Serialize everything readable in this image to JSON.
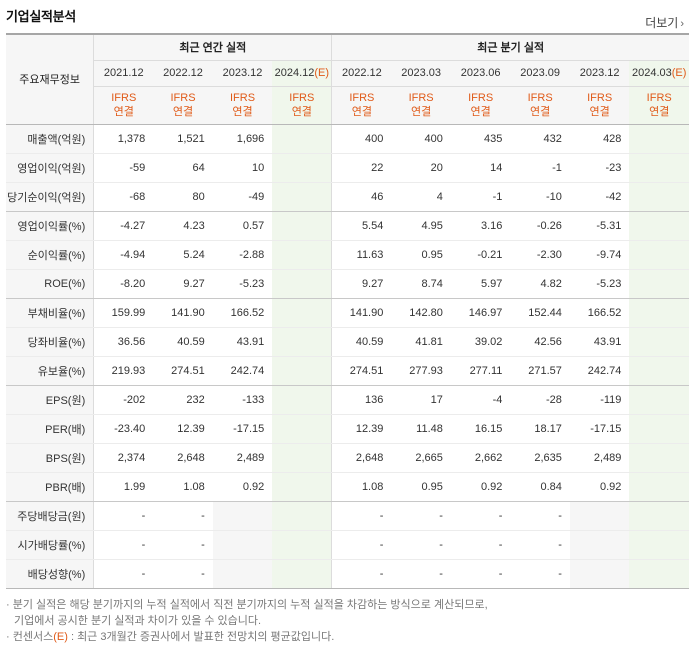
{
  "title": "기업실적분석",
  "more_label": "더보기",
  "header": {
    "label": "주요재무정보",
    "annual_group": "최근 연간 실적",
    "quarter_group": "최근 분기 실적",
    "annual_periods": [
      "2021.12",
      "2022.12",
      "2023.12",
      "2024.12"
    ],
    "quarter_periods": [
      "2022.12",
      "2023.03",
      "2023.06",
      "2023.09",
      "2023.12",
      "2024.03"
    ],
    "estimate_mark": "(E)",
    "ifrs": "IFRS",
    "basis": "연결"
  },
  "rows": [
    {
      "label": "매출액(억원)",
      "annual": [
        "1,378",
        "1,521",
        "1,696",
        ""
      ],
      "quarter": [
        "400",
        "400",
        "435",
        "432",
        "428",
        ""
      ]
    },
    {
      "label": "영업이익(억원)",
      "annual": [
        "-59",
        "64",
        "10",
        ""
      ],
      "quarter": [
        "22",
        "20",
        "14",
        "-1",
        "-23",
        ""
      ]
    },
    {
      "label": "당기순이익(억원)",
      "annual": [
        "-68",
        "80",
        "-49",
        ""
      ],
      "quarter": [
        "46",
        "4",
        "-1",
        "-10",
        "-42",
        ""
      ]
    },
    {
      "label": "영업이익률(%)",
      "annual": [
        "-4.27",
        "4.23",
        "0.57",
        ""
      ],
      "quarter": [
        "5.54",
        "4.95",
        "3.16",
        "-0.26",
        "-5.31",
        ""
      ]
    },
    {
      "label": "순이익률(%)",
      "annual": [
        "-4.94",
        "5.24",
        "-2.88",
        ""
      ],
      "quarter": [
        "11.63",
        "0.95",
        "-0.21",
        "-2.30",
        "-9.74",
        ""
      ]
    },
    {
      "label": "ROE(%)",
      "annual": [
        "-8.20",
        "9.27",
        "-5.23",
        ""
      ],
      "quarter": [
        "9.27",
        "8.74",
        "5.97",
        "4.82",
        "-5.23",
        ""
      ]
    },
    {
      "label": "부채비율(%)",
      "annual": [
        "159.99",
        "141.90",
        "166.52",
        ""
      ],
      "quarter": [
        "141.90",
        "142.80",
        "146.97",
        "152.44",
        "166.52",
        ""
      ]
    },
    {
      "label": "당좌비율(%)",
      "annual": [
        "36.56",
        "40.59",
        "43.91",
        ""
      ],
      "quarter": [
        "40.59",
        "41.81",
        "39.02",
        "42.56",
        "43.91",
        ""
      ]
    },
    {
      "label": "유보율(%)",
      "annual": [
        "219.93",
        "274.51",
        "242.74",
        ""
      ],
      "quarter": [
        "274.51",
        "277.93",
        "277.11",
        "271.57",
        "242.74",
        ""
      ]
    },
    {
      "label": "EPS(원)",
      "annual": [
        "-202",
        "232",
        "-133",
        ""
      ],
      "quarter": [
        "136",
        "17",
        "-4",
        "-28",
        "-119",
        ""
      ]
    },
    {
      "label": "PER(배)",
      "annual": [
        "-23.40",
        "12.39",
        "-17.15",
        ""
      ],
      "quarter": [
        "12.39",
        "11.48",
        "16.15",
        "18.17",
        "-17.15",
        ""
      ]
    },
    {
      "label": "BPS(원)",
      "annual": [
        "2,374",
        "2,648",
        "2,489",
        ""
      ],
      "quarter": [
        "2,648",
        "2,665",
        "2,662",
        "2,635",
        "2,489",
        ""
      ]
    },
    {
      "label": "PBR(배)",
      "annual": [
        "1.99",
        "1.08",
        "0.92",
        ""
      ],
      "quarter": [
        "1.08",
        "0.95",
        "0.92",
        "0.84",
        "0.92",
        ""
      ]
    },
    {
      "label": "주당배당금(원)",
      "annual": [
        "-",
        "-",
        "",
        ""
      ],
      "quarter": [
        "-",
        "-",
        "-",
        "-",
        "",
        ""
      ]
    },
    {
      "label": "시가배당률(%)",
      "annual": [
        "-",
        "-",
        "",
        ""
      ],
      "quarter": [
        "-",
        "-",
        "-",
        "-",
        "",
        ""
      ]
    },
    {
      "label": "배당성향(%)",
      "annual": [
        "-",
        "-",
        "",
        ""
      ],
      "quarter": [
        "-",
        "-",
        "-",
        "-",
        "",
        ""
      ]
    }
  ],
  "notes": [
    "분기 실적은 해당 분기까지의 누적 실적에서 직전 분기까지의 누적 실적을 차감하는 방식으로 계산되므로,",
    "기업에서 공시한 분기 실적과 차이가 있을 수 있습니다.",
    "컨센서스",
    "(E)",
    ": 최근 3개월간 증권사에서 발표한 전망치의 평균값입니다."
  ],
  "colors": {
    "negative": "#e0332a",
    "accent": "#e05a18",
    "estimate_bg": "#f0f7ec",
    "label_bg": "#f6f6f6"
  }
}
